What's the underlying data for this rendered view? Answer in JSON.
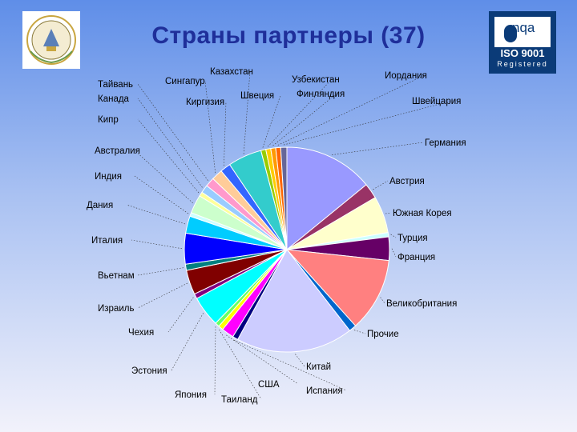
{
  "header": {
    "title": "Страны партнеры (37)",
    "iso_logo": {
      "brand": "nqa",
      "standard": "ISO 9001",
      "status": "Registered"
    }
  },
  "chart_data": {
    "type": "pie",
    "title": "Страны партнеры (37)",
    "legend": "none",
    "slices": [
      {
        "label": "Германия",
        "value": 14.5,
        "color": "#9999ff"
      },
      {
        "label": "Австрия",
        "value": 2.5,
        "color": "#993366"
      },
      {
        "label": "Южная Корея",
        "value": 6.0,
        "color": "#ffffcc"
      },
      {
        "label": "Турция",
        "value": 0.7,
        "color": "#ccffff"
      },
      {
        "label": "Франция",
        "value": 3.8,
        "color": "#660066"
      },
      {
        "label": "Великобритания",
        "value": 12.0,
        "color": "#ff8080"
      },
      {
        "label": "Прочие",
        "value": 1.2,
        "color": "#0066cc"
      },
      {
        "label": "Китай",
        "value": 19.0,
        "color": "#ccccff"
      },
      {
        "label": "Испания",
        "value": 0.9,
        "color": "#000080"
      },
      {
        "label": "США",
        "value": 2.0,
        "color": "#ff00ff"
      },
      {
        "label": "Таиланд",
        "value": 0.8,
        "color": "#ffff00"
      },
      {
        "label": "Япония",
        "value": 0.7,
        "color": "#66ff66"
      },
      {
        "label": "Эстония",
        "value": 5.0,
        "color": "#00ffff"
      },
      {
        "label": "Чехия",
        "value": 0.8,
        "color": "#800080"
      },
      {
        "label": "Израиль",
        "value": 4.0,
        "color": "#800000"
      },
      {
        "label": "Вьетнам",
        "value": 1.0,
        "color": "#008080"
      },
      {
        "label": "Италия",
        "value": 5.0,
        "color": "#0000ff"
      },
      {
        "label": "Дания",
        "value": 2.8,
        "color": "#00ccff"
      },
      {
        "label": "Индия",
        "value": 0.6,
        "color": "#ccffff"
      },
      {
        "label": "Австралия",
        "value": 3.0,
        "color": "#ccffcc"
      },
      {
        "label": "Кипр",
        "value": 0.7,
        "color": "#ffff99"
      },
      {
        "label": "Канада",
        "value": 1.3,
        "color": "#99ccff"
      },
      {
        "label": "Тайвань",
        "value": 1.5,
        "color": "#ff99cc"
      },
      {
        "label": "Сингапур",
        "value": 1.8,
        "color": "#ffcc99"
      },
      {
        "label": "Киргизия",
        "value": 1.7,
        "color": "#3366ff"
      },
      {
        "label": "Казахстан",
        "value": 5.5,
        "color": "#33cccc"
      },
      {
        "label": "Швеция",
        "value": 0.8,
        "color": "#99cc00"
      },
      {
        "label": "Узбекистан",
        "value": 0.8,
        "color": "#ffcc00"
      },
      {
        "label": "Финляндия",
        "value": 0.8,
        "color": "#ff9900"
      },
      {
        "label": "Иордания",
        "value": 0.8,
        "color": "#ff6600"
      },
      {
        "label": "Швейцария",
        "value": 1.0,
        "color": "#666699"
      }
    ]
  }
}
